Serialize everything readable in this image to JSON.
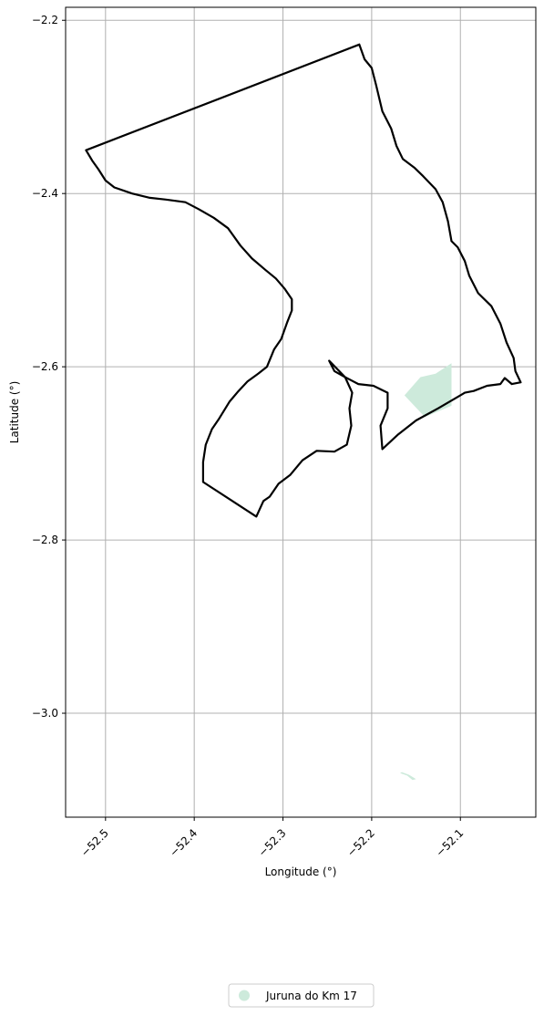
{
  "chart_data": {
    "type": "map",
    "xlabel": "Longitude (°)",
    "ylabel": "Latitude (°)",
    "xlim": [
      -52.545,
      -52.015
    ],
    "ylim": [
      -3.12,
      -2.185
    ],
    "grid": true,
    "xticks": [
      -52.5,
      -52.4,
      -52.3,
      -52.2,
      -52.1
    ],
    "xtick_labels": [
      "−52.5",
      "−52.4",
      "−52.3",
      "−52.2",
      "−52.1"
    ],
    "yticks": [
      -2.2,
      -2.4,
      -2.6,
      -2.8,
      -3.0
    ],
    "ytick_labels": [
      "−2.2",
      "−2.4",
      "−2.6",
      "−2.8",
      "−3.0"
    ],
    "legend": {
      "position": "bottom-center",
      "entries": [
        {
          "label": "Juruna do Km 17",
          "color": "#cdeadb"
        }
      ]
    },
    "boundary": {
      "stroke": "#000000",
      "coordinates": [
        [
          -52.214,
          -2.228
        ],
        [
          -52.208,
          -2.245
        ],
        [
          -52.2,
          -2.255
        ],
        [
          -52.195,
          -2.275
        ],
        [
          -52.188,
          -2.305
        ],
        [
          -52.178,
          -2.325
        ],
        [
          -52.172,
          -2.345
        ],
        [
          -52.165,
          -2.36
        ],
        [
          -52.152,
          -2.37
        ],
        [
          -52.142,
          -2.38
        ],
        [
          -52.128,
          -2.395
        ],
        [
          -52.12,
          -2.41
        ],
        [
          -52.114,
          -2.432
        ],
        [
          -52.11,
          -2.455
        ],
        [
          -52.103,
          -2.462
        ],
        [
          -52.095,
          -2.478
        ],
        [
          -52.09,
          -2.495
        ],
        [
          -52.08,
          -2.515
        ],
        [
          -52.065,
          -2.53
        ],
        [
          -52.055,
          -2.55
        ],
        [
          -52.048,
          -2.572
        ],
        [
          -52.04,
          -2.59
        ],
        [
          -52.038,
          -2.605
        ],
        [
          -52.032,
          -2.618
        ],
        [
          -52.042,
          -2.62
        ],
        [
          -52.05,
          -2.613
        ],
        [
          -52.055,
          -2.62
        ],
        [
          -52.07,
          -2.622
        ],
        [
          -52.085,
          -2.628
        ],
        [
          -52.095,
          -2.63
        ],
        [
          -52.105,
          -2.636
        ],
        [
          -52.125,
          -2.648
        ],
        [
          -52.15,
          -2.662
        ],
        [
          -52.17,
          -2.678
        ],
        [
          -52.188,
          -2.695
        ],
        [
          -52.19,
          -2.668
        ],
        [
          -52.182,
          -2.648
        ],
        [
          -52.182,
          -2.63
        ],
        [
          -52.198,
          -2.622
        ],
        [
          -52.215,
          -2.62
        ],
        [
          -52.23,
          -2.612
        ],
        [
          -52.248,
          -2.593
        ],
        [
          -52.242,
          -2.605
        ],
        [
          -52.23,
          -2.612
        ],
        [
          -52.222,
          -2.63
        ],
        [
          -52.225,
          -2.648
        ],
        [
          -52.223,
          -2.668
        ],
        [
          -52.228,
          -2.69
        ],
        [
          -52.242,
          -2.698
        ],
        [
          -52.262,
          -2.697
        ],
        [
          -52.278,
          -2.708
        ],
        [
          -52.292,
          -2.725
        ],
        [
          -52.305,
          -2.735
        ],
        [
          -52.315,
          -2.75
        ],
        [
          -52.322,
          -2.755
        ],
        [
          -52.33,
          -2.773
        ],
        [
          -52.39,
          -2.733
        ],
        [
          -52.39,
          -2.71
        ],
        [
          -52.387,
          -2.69
        ],
        [
          -52.38,
          -2.672
        ],
        [
          -52.372,
          -2.66
        ],
        [
          -52.36,
          -2.64
        ],
        [
          -52.35,
          -2.628
        ],
        [
          -52.34,
          -2.617
        ],
        [
          -52.328,
          -2.608
        ],
        [
          -52.318,
          -2.6
        ],
        [
          -52.31,
          -2.58
        ],
        [
          -52.302,
          -2.568
        ],
        [
          -52.295,
          -2.548
        ],
        [
          -52.29,
          -2.535
        ],
        [
          -52.29,
          -2.522
        ],
        [
          -52.298,
          -2.51
        ],
        [
          -52.308,
          -2.498
        ],
        [
          -52.32,
          -2.488
        ],
        [
          -52.335,
          -2.475
        ],
        [
          -52.348,
          -2.46
        ],
        [
          -52.362,
          -2.44
        ],
        [
          -52.378,
          -2.428
        ],
        [
          -52.395,
          -2.418
        ],
        [
          -52.41,
          -2.41
        ],
        [
          -52.432,
          -2.407
        ],
        [
          -52.45,
          -2.405
        ],
        [
          -52.47,
          -2.4
        ],
        [
          -52.49,
          -2.393
        ],
        [
          -52.5,
          -2.385
        ],
        [
          -52.508,
          -2.372
        ],
        [
          -52.515,
          -2.362
        ],
        [
          -52.522,
          -2.35
        ],
        [
          -52.214,
          -2.228
        ]
      ]
    },
    "areas": [
      {
        "name": "Juruna do Km 17",
        "color": "#cdeadb",
        "polygons": [
          [
            [
              -52.163,
              -2.633
            ],
            [
              -52.145,
              -2.612
            ],
            [
              -52.128,
              -2.608
            ],
            [
              -52.11,
              -2.596
            ],
            [
              -52.11,
              -2.645
            ],
            [
              -52.14,
              -2.658
            ]
          ],
          [
            [
              -52.168,
              -3.069
            ],
            [
              -52.16,
              -3.072
            ],
            [
              -52.154,
              -3.077
            ],
            [
              -52.15,
              -3.076
            ],
            [
              -52.158,
              -3.071
            ],
            [
              -52.166,
              -3.068
            ]
          ]
        ]
      }
    ]
  }
}
